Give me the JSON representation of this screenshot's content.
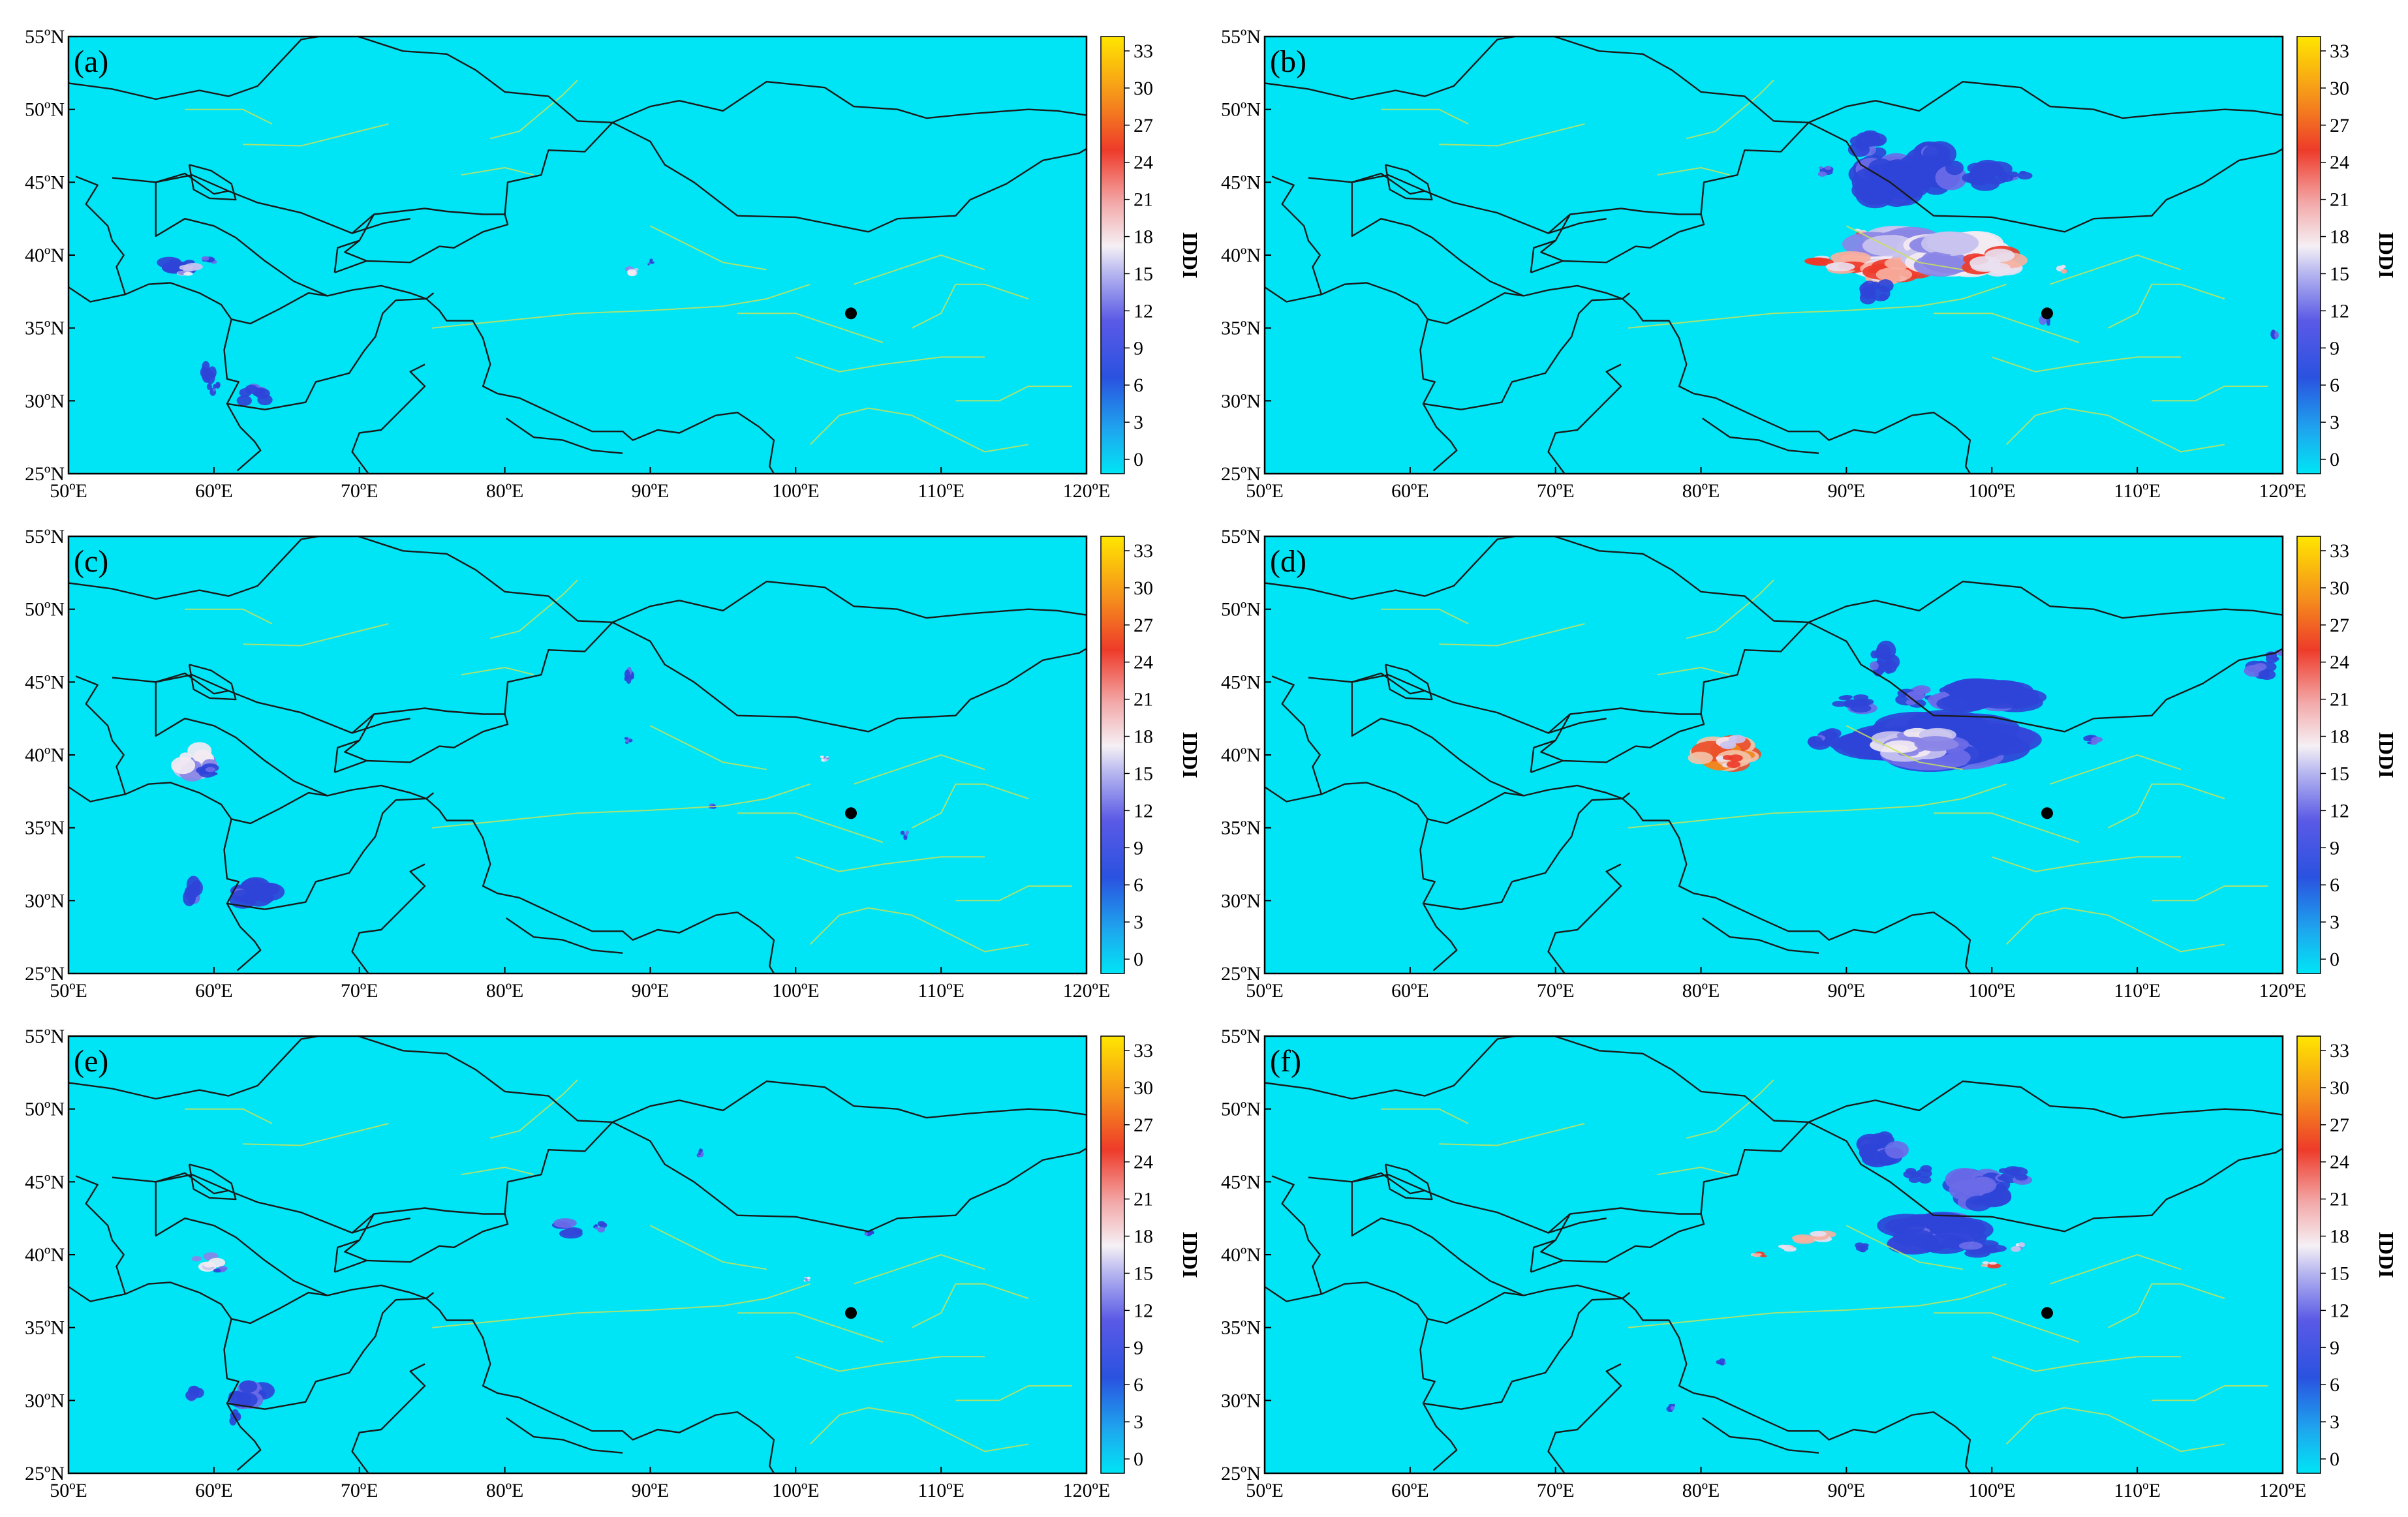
{
  "figure": {
    "panel_labels": [
      "(a)",
      "(b)",
      "(c)",
      "(d)",
      "(e)",
      "(f)"
    ],
    "lon_ticks": [
      "50ºE",
      "60ºE",
      "70ºE",
      "80ºE",
      "90ºE",
      "100ºE",
      "110ºE",
      "120ºE"
    ],
    "lat_ticks": [
      "25ºN",
      "30ºN",
      "35ºN",
      "40ºN",
      "45ºN",
      "50ºN",
      "55ºN"
    ],
    "colorbar": {
      "title": "IDDI",
      "ticks": [
        "0",
        "3",
        "6",
        "9",
        "12",
        "15",
        "18",
        "21",
        "24",
        "27",
        "30",
        "33"
      ]
    },
    "station_marker": {
      "lon": 103.8,
      "lat": 36.0
    },
    "colors": {
      "background": "#00e5f5",
      "border": "#1a1a1a",
      "province_line": "#c8e35a",
      "low": "#2f44d8",
      "mid": "#e6e6f5",
      "high": "#f04a2a",
      "max": "#ffe000"
    }
  }
}
